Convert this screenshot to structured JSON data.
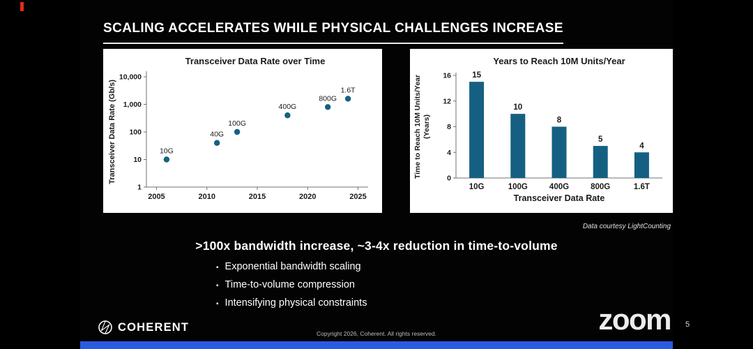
{
  "slide": {
    "title": "SCALING ACCELERATES WHILE PHYSICAL CHALLENGES INCREASE",
    "key_message": ">100x bandwidth increase, ~3-4x reduction in time-to-volume",
    "bullets": [
      "Exponential bandwidth scaling",
      "Time-to-volume compression",
      "Intensifying physical constraints"
    ],
    "data_credit": "Data courtesy LightCounting",
    "footer": {
      "brand": "COHERENT",
      "copyright": "Copyright 2026, Coherent. All rights reserved.",
      "page_number": "5"
    }
  },
  "zoom_ui": {
    "watermark": "zoom"
  },
  "colors": {
    "accent_teal": "#156082",
    "panel_bg": "#ffffff",
    "slide_bg": "#030303",
    "bottom_bar_blue": "#2a5be2",
    "recording_red": "#e8281e"
  },
  "chart_data": [
    {
      "type": "scatter",
      "title": "Transceiver Data Rate over Time",
      "xlabel": "",
      "ylabel": "Transceiver Data Rate (Gb/s)",
      "x": [
        2006,
        2011,
        2013,
        2018,
        2022,
        2024
      ],
      "y": [
        10,
        40,
        100,
        400,
        800,
        1600
      ],
      "point_labels": [
        "10G",
        "40G",
        "100G",
        "400G",
        "800G",
        "1.6T"
      ],
      "y_scale": "log",
      "ylim": [
        1,
        10000
      ],
      "yticks": [
        1,
        10,
        100,
        1000,
        10000
      ],
      "ytick_labels": [
        "1",
        "10",
        "100",
        "1,000",
        "10,000"
      ],
      "xlim": [
        2004,
        2026
      ],
      "xticks": [
        2005,
        2010,
        2015,
        2020,
        2025
      ],
      "grid": false,
      "legend": false,
      "marker_color": "#156082"
    },
    {
      "type": "bar",
      "title": "Years to Reach 10M Units/Year",
      "xlabel": "Transceiver Data Rate",
      "ylabel": "Time to Reach 10M Units/Year (Years)",
      "ylabel_lines": [
        "Time to Reach 10M Units/Year",
        "(Years)"
      ],
      "categories": [
        "10G",
        "100G",
        "400G",
        "800G",
        "1.6T"
      ],
      "values": [
        15,
        10,
        8,
        5,
        4
      ],
      "ylim": [
        0,
        16
      ],
      "yticks": [
        0,
        4,
        8,
        12,
        16
      ],
      "grid": false,
      "legend": false,
      "bar_color": "#156082"
    }
  ]
}
